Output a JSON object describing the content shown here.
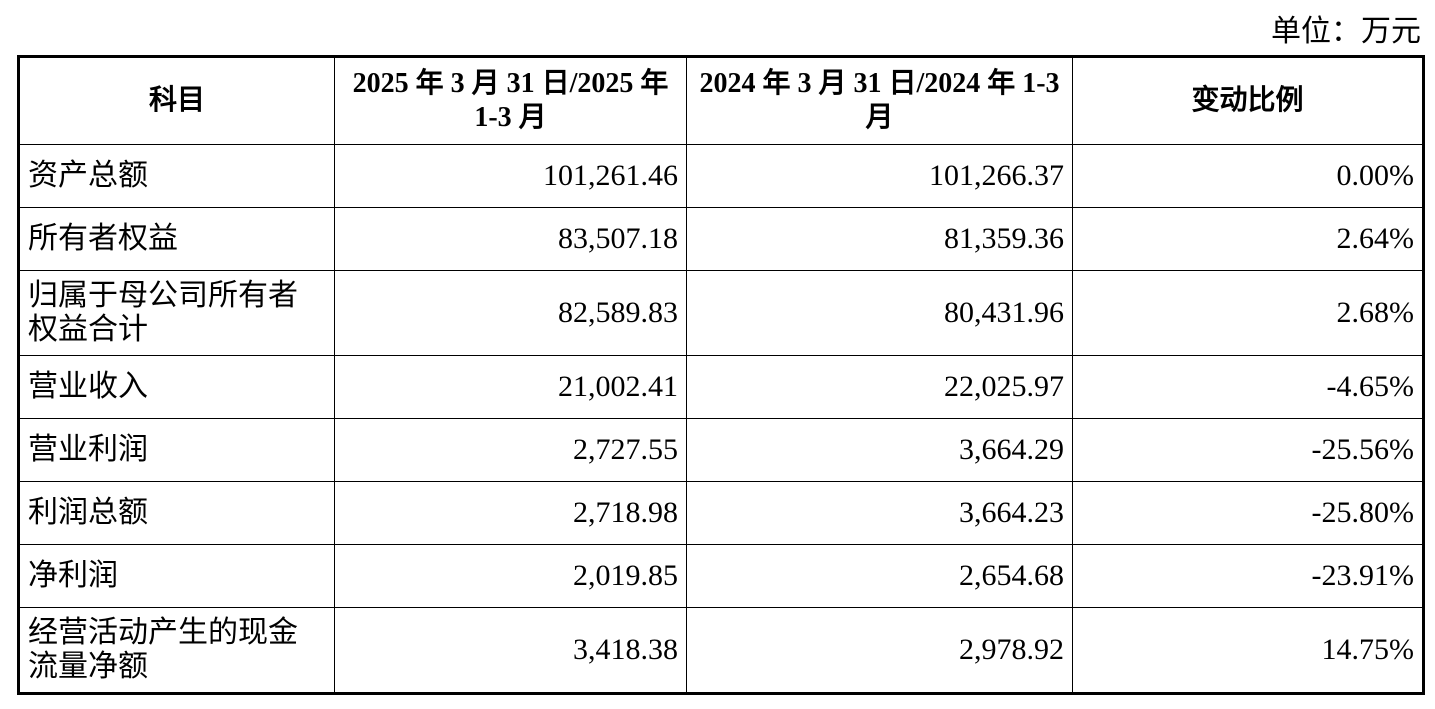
{
  "unit": "单位：万元",
  "table": {
    "header": [
      "科目",
      "2025 年 3 月 31 日/2025 年 1-3 月",
      "2024 年 3 月 31 日/2024 年 1-3 月",
      "变动比例"
    ],
    "rows": [
      [
        "资产总额",
        "101,261.46",
        "101,266.37",
        "0.00%"
      ],
      [
        "所有者权益",
        "83,507.18",
        "81,359.36",
        "2.64%"
      ],
      [
        "归属于母公司所有者权益合计",
        "82,589.83",
        "80,431.96",
        "2.68%"
      ],
      [
        "营业收入",
        "21,002.41",
        "22,025.97",
        "-4.65%"
      ],
      [
        "营业利润",
        "2,727.55",
        "3,664.29",
        "-25.56%"
      ],
      [
        "利润总额",
        "2,718.98",
        "3,664.23",
        "-25.80%"
      ],
      [
        "净利润",
        "2,019.85",
        "2,654.68",
        "-23.91%"
      ],
      [
        "经营活动产生的现金流量净额",
        "3,418.38",
        "2,978.92",
        "14.75%"
      ]
    ]
  }
}
